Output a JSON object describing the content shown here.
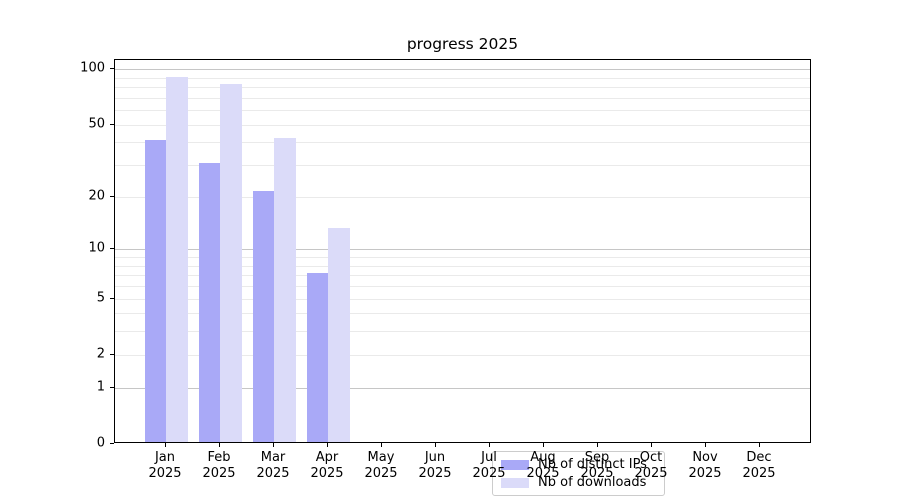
{
  "title": "progress 2025",
  "chart_data": {
    "type": "bar",
    "title": "progress 2025",
    "scale": "log1p",
    "categories": [
      "Jan",
      "Feb",
      "Mar",
      "Apr",
      "May",
      "Jun",
      "Jul",
      "Aug",
      "Sep",
      "Oct",
      "Nov",
      "Dec"
    ],
    "year_label": "2025",
    "series": [
      {
        "name": "Nb of distinct IPs",
        "color": "#a9a9f7",
        "values": [
          40,
          30,
          21,
          7,
          0,
          0,
          0,
          0,
          0,
          0,
          0,
          0
        ]
      },
      {
        "name": "Nb of downloads",
        "color": "#dbdbf9",
        "values": [
          89,
          81,
          41,
          13,
          0,
          0,
          0,
          0,
          0,
          0,
          0,
          0
        ]
      }
    ],
    "xlabel": "",
    "ylabel": "",
    "y_ticks": [
      0,
      1,
      2,
      5,
      10,
      20,
      50,
      100
    ],
    "ylim": [
      0,
      112
    ],
    "grid_major": [
      1,
      10,
      100
    ],
    "grid_minor": [
      2,
      3,
      4,
      5,
      6,
      7,
      8,
      9,
      20,
      30,
      40,
      50,
      60,
      70,
      80,
      90
    ],
    "grid": "on",
    "legend_position": "lower-center"
  }
}
